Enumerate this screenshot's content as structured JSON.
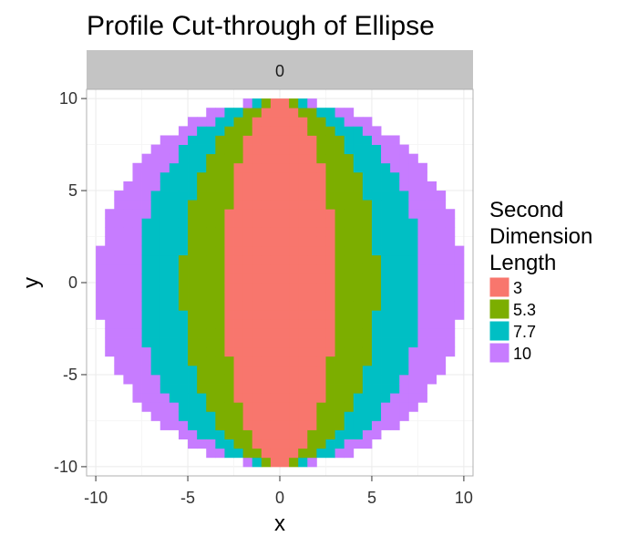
{
  "chart_data": {
    "type": "heatmap",
    "title": "Profile Cut-through of Ellipse",
    "facet_label": "0",
    "xlabel": "x",
    "ylabel": "y",
    "xlim": [
      -10.5,
      10.5
    ],
    "ylim": [
      -10.5,
      10.5
    ],
    "x_ticks": [
      -10,
      -5,
      0,
      5,
      10
    ],
    "y_ticks": [
      10,
      5,
      0,
      -5,
      -10
    ],
    "x_tick_labels": [
      "-10",
      "-5",
      "0",
      "5",
      "10"
    ],
    "y_tick_labels": [
      "10",
      "5",
      "0",
      "-5",
      "-10"
    ],
    "grid": true,
    "ellipse_major_length": 10,
    "cell_size": 0.5,
    "legend": {
      "title_lines": [
        "Second",
        "Dimension",
        "Length"
      ],
      "placement": "right"
    },
    "series": [
      {
        "name": "3",
        "semi_axis": 3,
        "color": "#F8766D"
      },
      {
        "name": "5.3",
        "semi_axis": 5.3,
        "color": "#7CAE00"
      },
      {
        "name": "7.7",
        "semi_axis": 7.7,
        "color": "#00BFC4"
      },
      {
        "name": "10",
        "semi_axis": 10,
        "color": "#C77CFF"
      }
    ]
  }
}
